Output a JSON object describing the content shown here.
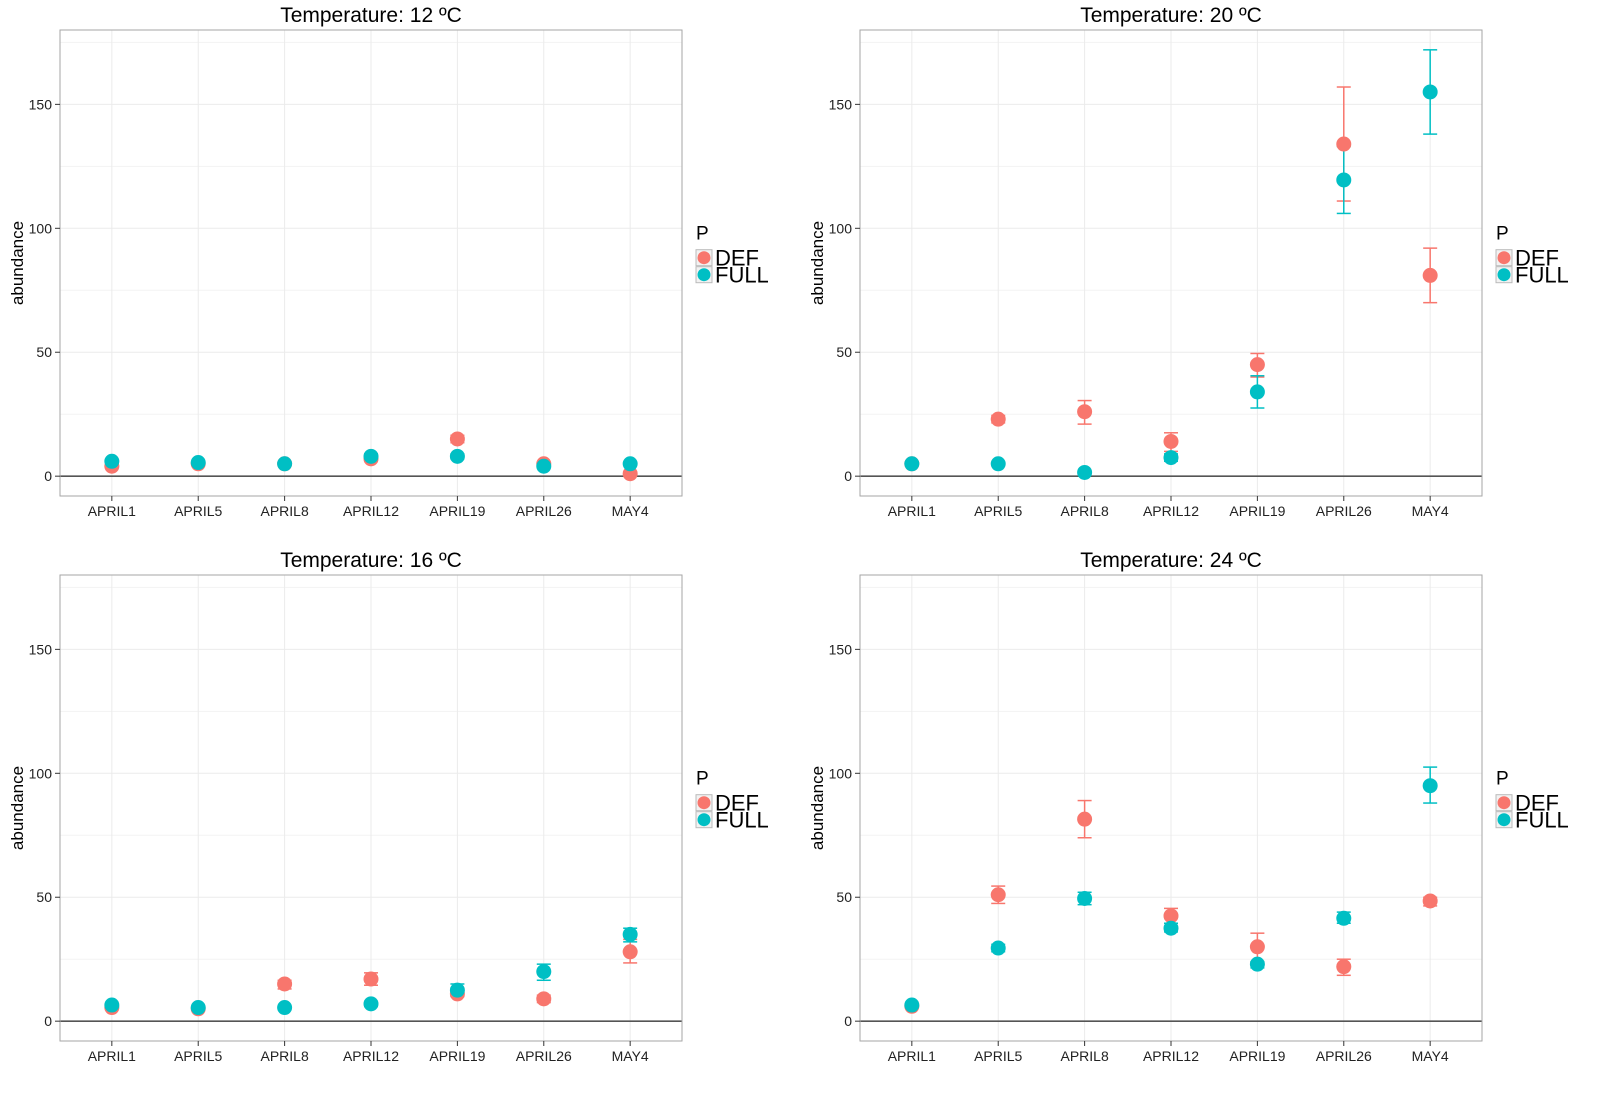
{
  "colors": {
    "DEF": "#F8766D",
    "FULL": "#00BFC4",
    "grid": "#EBEBEB",
    "frame": "#A6A6A6",
    "zero_line": "#555555"
  },
  "chart_data": [
    {
      "type": "scatter",
      "title": "Temperature: 12 ºC",
      "ylabel": "abundance",
      "xlabel": "",
      "categories": [
        "APRIL1",
        "APRIL5",
        "APRIL8",
        "APRIL12",
        "APRIL19",
        "APRIL26",
        "MAY4"
      ],
      "ylim": [
        -8,
        180
      ],
      "yticks": [
        0,
        50,
        100,
        150
      ],
      "grid": true,
      "legend": {
        "title": "P",
        "entries": [
          "DEF",
          "FULL"
        ],
        "placement": "right"
      },
      "series": [
        {
          "name": "DEF",
          "values": [
            4,
            5,
            5,
            7,
            15,
            5,
            1
          ],
          "lower": [
            3.5,
            4.5,
            4.5,
            6,
            13.5,
            4.5,
            0.5
          ],
          "upper": [
            4.5,
            5.5,
            5.5,
            8,
            16.5,
            5.5,
            1.5
          ]
        },
        {
          "name": "FULL",
          "values": [
            6,
            5.5,
            5,
            8,
            8,
            4,
            5
          ],
          "lower": [
            5.5,
            5,
            4.5,
            7,
            7,
            3.5,
            4.5
          ],
          "upper": [
            6.5,
            6,
            5.5,
            9,
            9,
            4.5,
            5.5
          ]
        }
      ]
    },
    {
      "type": "scatter",
      "title": "Temperature: 20 ºC",
      "ylabel": "abundance",
      "xlabel": "",
      "categories": [
        "APRIL1",
        "APRIL5",
        "APRIL8",
        "APRIL12",
        "APRIL19",
        "APRIL26",
        "MAY4"
      ],
      "ylim": [
        -8,
        180
      ],
      "yticks": [
        0,
        50,
        100,
        150
      ],
      "grid": true,
      "legend": {
        "title": "P",
        "entries": [
          "DEF",
          "FULL"
        ],
        "placement": "right"
      },
      "series": [
        {
          "name": "DEF",
          "values": [
            5,
            23,
            26,
            14,
            45,
            134,
            81
          ],
          "lower": [
            4.5,
            21.5,
            21,
            10,
            40,
            111,
            70
          ],
          "upper": [
            5.5,
            24.5,
            30.5,
            17.5,
            49.5,
            157,
            92
          ]
        },
        {
          "name": "FULL",
          "values": [
            5,
            5,
            1.5,
            7.5,
            34,
            119.5,
            155
          ],
          "lower": [
            4.5,
            4.5,
            1,
            6,
            27.5,
            106,
            138
          ],
          "upper": [
            5.5,
            5.5,
            2,
            9,
            40.5,
            133,
            172
          ]
        }
      ]
    },
    {
      "type": "scatter",
      "title": "Temperature: 16 ºC",
      "ylabel": "abundance",
      "xlabel": "",
      "categories": [
        "APRIL1",
        "APRIL5",
        "APRIL8",
        "APRIL12",
        "APRIL19",
        "APRIL26",
        "MAY4"
      ],
      "ylim": [
        -8,
        180
      ],
      "yticks": [
        0,
        50,
        100,
        150
      ],
      "grid": true,
      "legend": {
        "title": "P",
        "entries": [
          "DEF",
          "FULL"
        ],
        "placement": "right"
      },
      "series": [
        {
          "name": "DEF",
          "values": [
            5.5,
            5,
            15,
            17,
            11,
            9,
            28
          ],
          "lower": [
            5,
            4.5,
            13,
            14.5,
            10,
            7.5,
            23.5
          ],
          "upper": [
            6,
            5.5,
            16.5,
            19.5,
            12,
            10.5,
            33
          ]
        },
        {
          "name": "FULL",
          "values": [
            6.5,
            5.5,
            5.5,
            7,
            12.5,
            20,
            35
          ],
          "lower": [
            6,
            5,
            5,
            6,
            10,
            16.5,
            32
          ],
          "upper": [
            7,
            6,
            6,
            8,
            15,
            23,
            37.5
          ]
        }
      ]
    },
    {
      "type": "scatter",
      "title": "Temperature: 24 ºC",
      "ylabel": "abundance",
      "xlabel": "",
      "categories": [
        "APRIL1",
        "APRIL5",
        "APRIL8",
        "APRIL12",
        "APRIL19",
        "APRIL26",
        "MAY4"
      ],
      "ylim": [
        -8,
        180
      ],
      "yticks": [
        0,
        50,
        100,
        150
      ],
      "grid": true,
      "legend": {
        "title": "P",
        "entries": [
          "DEF",
          "FULL"
        ],
        "placement": "right"
      },
      "series": [
        {
          "name": "DEF",
          "values": [
            6,
            51,
            81.5,
            42.5,
            30,
            22,
            48.5
          ],
          "lower": [
            5.5,
            47.5,
            74,
            39.5,
            24,
            18.5,
            46.5
          ],
          "upper": [
            6.5,
            54.5,
            89,
            45.5,
            35.5,
            25,
            50
          ]
        },
        {
          "name": "FULL",
          "values": [
            6.5,
            29.5,
            49.5,
            37.5,
            23,
            41.5,
            95
          ],
          "lower": [
            6,
            28,
            47,
            36,
            21.5,
            39.5,
            88
          ],
          "upper": [
            7,
            31,
            52,
            39.5,
            24,
            44,
            102.5
          ]
        }
      ]
    }
  ]
}
